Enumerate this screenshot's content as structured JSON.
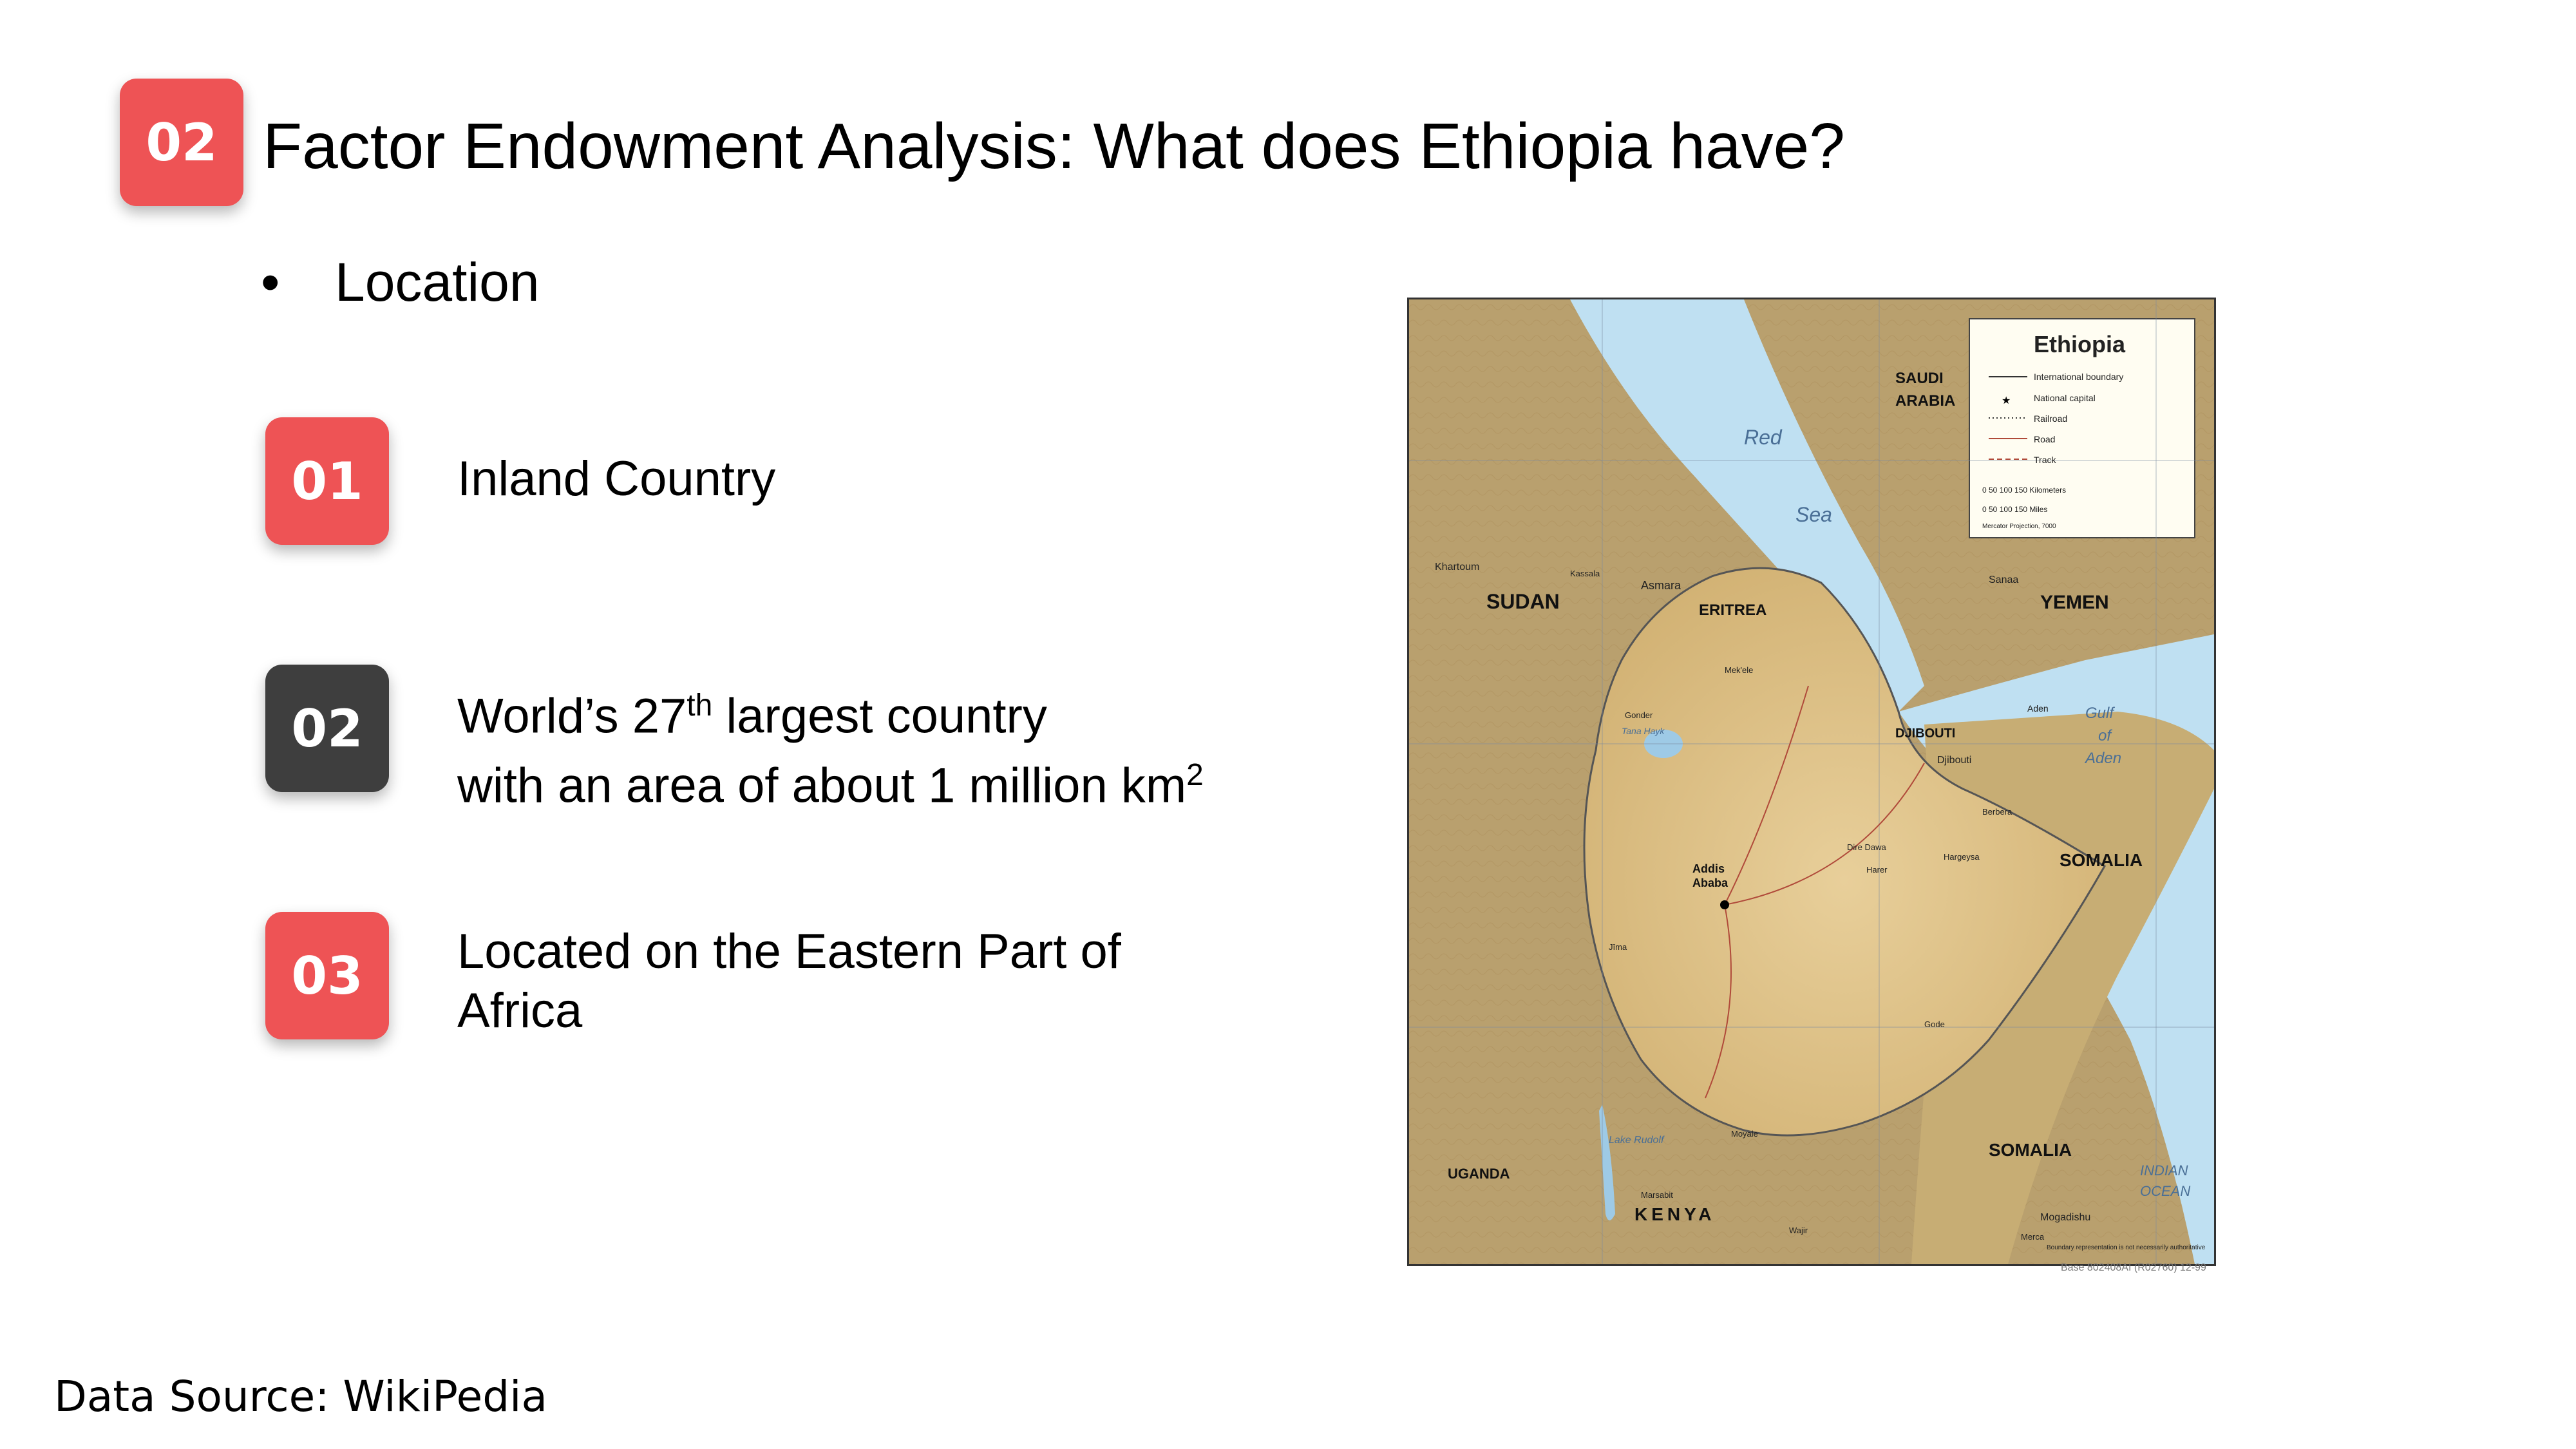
{
  "header": {
    "badge": "02",
    "title": "Factor Endowment Analysis: What does Ethiopia have?"
  },
  "section": {
    "bullet": "•",
    "label": "Location"
  },
  "items": [
    {
      "num": "01",
      "line1": "Inland Country"
    },
    {
      "num": "02",
      "line1_a": "World’s 27",
      "line1_sup": "th",
      "line1_b": " largest country",
      "line2_a": "with an area of about 1 million km",
      "line2_sup": "2"
    },
    {
      "num": "03",
      "line1": "Located on the Eastern Part of",
      "line2": "Africa"
    }
  ],
  "footer": {
    "source": "Data Source: WikiPedia"
  },
  "map": {
    "legend_title": "Ethiopia",
    "legend_items": [
      "International boundary",
      "National capital",
      "Railroad",
      "Road",
      "Track"
    ],
    "scale_km": "0   50   100   150 Kilometers",
    "scale_mi": "0      50      100      150 Miles",
    "projection": "Mercator Projection, 7000",
    "labels": {
      "red": "Red",
      "sea": "Sea",
      "saudi1": "SAUDI",
      "saudi2": "ARABIA",
      "yemen": "YEMEN",
      "sudan": "SUDAN",
      "eritrea": "ERITREA",
      "djibouti_c": "DJIBOUTI",
      "djibouti": "Djibouti",
      "somalia1": "SOMALIA",
      "somalia2": "SOMALIA",
      "kenya": "KENYA",
      "uganda": "UGANDA",
      "gulf1": "Gulf",
      "gulf2": "of",
      "gulf3": "Aden",
      "indian1": "INDIAN",
      "indian2": "OCEAN",
      "addis1": "Addis",
      "addis2": "Ababa",
      "asmara": "Asmara",
      "khartoum": "Khartoum",
      "sanaa": "Sanaa",
      "aden": "Aden",
      "mogadishu": "Mogadishu",
      "lake_rudolf": "Lake Rudolf",
      "lake_tana": "Tana Hayk",
      "kassala": "Kassala",
      "hargeysa": "Hargeysa",
      "berbera": "Berbera",
      "dire_dawa": "Dire Dawa",
      "harar": "Harer",
      "gonder": "Gonder",
      "mekele": "Mek'ele",
      "jima": "Jīma",
      "gode": "Gode",
      "kismayu": "Merca",
      "nairobi": "Marsabit",
      "moyale": "Moyale",
      "wajir": "Wajir",
      "boundary_note": "Boundary representation is not necessarily authoritative"
    },
    "caption": "Base 802408AI (R02760) 12-99"
  }
}
